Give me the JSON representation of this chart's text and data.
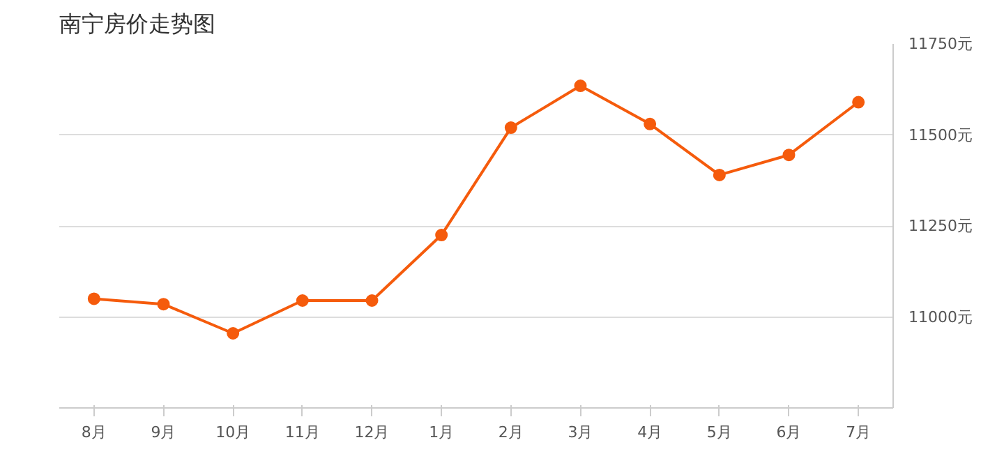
{
  "chart_data": {
    "type": "line",
    "title": "南宁房价走势图",
    "categories": [
      "8月",
      "9月",
      "10月",
      "11月",
      "12月",
      "1月",
      "2月",
      "3月",
      "4月",
      "5月",
      "6月",
      "7月"
    ],
    "series": [
      {
        "color": "#f55b0c",
        "values": [
          11050,
          11035,
          10955,
          11045,
          11045,
          11225,
          11520,
          11635,
          11530,
          11390,
          11445,
          11590
        ]
      }
    ],
    "ylim": [
      10750,
      11750
    ],
    "yticks": [
      {
        "value": 11000,
        "label": "11000元"
      },
      {
        "value": 11250,
        "label": "11250元"
      },
      {
        "value": 11500,
        "label": "11500元"
      },
      {
        "value": 11750,
        "label": "11750元"
      }
    ],
    "grid": "y",
    "marker": "circle",
    "line_style": "solid"
  }
}
